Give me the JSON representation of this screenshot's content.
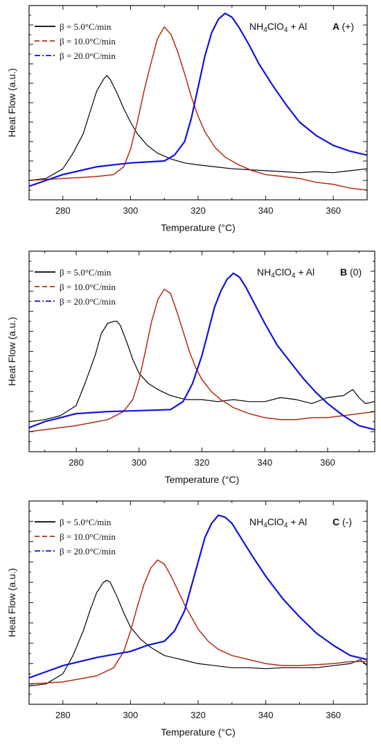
{
  "chart_data": [
    {
      "type": "line",
      "panel_label": "A",
      "panel_sign": "(+)",
      "title": "NH4ClO4 + Al",
      "xlabel": "Temperature (°C)",
      "ylabel": "Heat Flow (a.u.)",
      "xlim": [
        270,
        370
      ],
      "ylim": [
        0,
        10
      ],
      "xticks": [
        280,
        300,
        320,
        340,
        360
      ],
      "legend_position": "top-left",
      "series": [
        {
          "name": "β = 5.0°C/min",
          "color": "#000000",
          "dash": "solid",
          "x": [
            270,
            275,
            280,
            283,
            286,
            288,
            290,
            292,
            293,
            294,
            296,
            298,
            300,
            302,
            305,
            308,
            312,
            316,
            320,
            325,
            330,
            335,
            340,
            345,
            350,
            355,
            360,
            365,
            370
          ],
          "y": [
            1.0,
            1.1,
            1.6,
            2.4,
            3.4,
            4.5,
            5.6,
            6.2,
            6.4,
            6.2,
            5.5,
            4.7,
            4.0,
            3.4,
            2.8,
            2.4,
            2.1,
            1.9,
            1.8,
            1.7,
            1.6,
            1.55,
            1.5,
            1.45,
            1.4,
            1.45,
            1.4,
            1.5,
            1.6
          ]
        },
        {
          "name": "β = 10.0°C/min",
          "color": "#b22a10",
          "dash": "dashed",
          "x": [
            270,
            280,
            290,
            295,
            298,
            300,
            302,
            304,
            306,
            308,
            310,
            312,
            314,
            316,
            318,
            320,
            322,
            325,
            328,
            332,
            336,
            340,
            345,
            350,
            355,
            360,
            365,
            370
          ],
          "y": [
            1.0,
            1.1,
            1.2,
            1.3,
            1.7,
            2.6,
            4.0,
            5.6,
            7.0,
            8.3,
            8.9,
            8.5,
            7.6,
            6.5,
            5.3,
            4.3,
            3.5,
            2.7,
            2.2,
            1.8,
            1.5,
            1.3,
            1.2,
            1.1,
            0.9,
            0.8,
            0.6,
            0.5
          ]
        },
        {
          "name": "β = 20.0°C/min",
          "color": "#1010e0",
          "dash": "dashdot",
          "x": [
            270,
            275,
            280,
            290,
            300,
            305,
            310,
            313,
            316,
            318,
            320,
            322,
            324,
            326,
            328,
            330,
            332,
            335,
            338,
            342,
            346,
            350,
            355,
            360,
            365,
            370
          ],
          "y": [
            0.7,
            1.0,
            1.3,
            1.7,
            1.9,
            1.95,
            2.0,
            2.3,
            3.0,
            4.2,
            5.8,
            7.4,
            8.6,
            9.3,
            9.6,
            9.4,
            8.9,
            8.0,
            7.0,
            5.9,
            4.9,
            4.0,
            3.3,
            2.8,
            2.5,
            2.3
          ]
        }
      ]
    },
    {
      "type": "line",
      "panel_label": "B",
      "panel_sign": "(0)",
      "title": "NH4ClO4 + Al",
      "xlabel": "Temperature (°C)",
      "ylabel": "Heat Flow (a.u.)",
      "xlim": [
        265,
        375
      ],
      "ylim": [
        0,
        10
      ],
      "xticks": [
        280,
        300,
        320,
        340,
        360
      ],
      "legend_position": "top-left",
      "series": [
        {
          "name": "β = 5.0°C/min",
          "color": "#000000",
          "dash": "solid",
          "x": [
            265,
            270,
            275,
            280,
            283,
            286,
            288,
            290,
            292,
            293,
            294,
            296,
            298,
            300,
            303,
            306,
            310,
            315,
            320,
            325,
            330,
            335,
            340,
            345,
            350,
            355,
            360,
            365,
            368,
            370,
            372,
            375
          ],
          "y": [
            1.5,
            1.6,
            1.8,
            2.3,
            3.5,
            4.8,
            5.9,
            6.4,
            6.5,
            6.5,
            6.3,
            5.5,
            4.6,
            3.9,
            3.4,
            3.1,
            2.8,
            2.6,
            2.6,
            2.5,
            2.6,
            2.5,
            2.5,
            2.7,
            2.6,
            2.4,
            2.7,
            2.8,
            3.1,
            2.7,
            2.4,
            2.5
          ]
        },
        {
          "name": "β = 10.0°C/min",
          "color": "#b22a10",
          "dash": "dashed",
          "x": [
            265,
            270,
            280,
            290,
            295,
            298,
            300,
            302,
            304,
            306,
            308,
            310,
            312,
            314,
            316,
            318,
            320,
            323,
            326,
            330,
            335,
            340,
            345,
            350,
            355,
            360,
            365,
            370,
            375
          ],
          "y": [
            1.0,
            1.1,
            1.3,
            1.6,
            2.0,
            2.6,
            3.6,
            5.0,
            6.5,
            7.6,
            8.1,
            7.9,
            7.0,
            6.0,
            5.0,
            4.2,
            3.6,
            3.0,
            2.6,
            2.2,
            1.9,
            1.7,
            1.6,
            1.6,
            1.7,
            1.7,
            1.8,
            1.9,
            2.0
          ]
        },
        {
          "name": "β = 20.0°C/min",
          "color": "#1010e0",
          "dash": "dashdot",
          "x": [
            265,
            270,
            275,
            280,
            290,
            300,
            310,
            314,
            317,
            320,
            322,
            324,
            326,
            328,
            330,
            332,
            334,
            337,
            340,
            344,
            348,
            352,
            356,
            360,
            365,
            370,
            375
          ],
          "y": [
            1.2,
            1.5,
            1.7,
            1.9,
            2.0,
            2.05,
            2.1,
            2.5,
            3.4,
            4.8,
            6.0,
            7.2,
            8.0,
            8.6,
            8.9,
            8.7,
            8.2,
            7.3,
            6.4,
            5.3,
            4.5,
            3.7,
            3.0,
            2.4,
            1.8,
            1.3,
            1.1
          ]
        }
      ]
    },
    {
      "type": "line",
      "panel_label": "C",
      "panel_sign": "(-)",
      "title": "NH4ClO4 + Al",
      "xlabel": "Temperature (°C)",
      "ylabel": "Heat Flow (a.u.)",
      "xlim": [
        270,
        370
      ],
      "ylim": [
        0,
        10
      ],
      "xticks": [
        280,
        300,
        320,
        340,
        360
      ],
      "legend_position": "top-left",
      "series": [
        {
          "name": "β = 5.0°C/min",
          "color": "#000000",
          "dash": "solid",
          "x": [
            270,
            275,
            280,
            283,
            286,
            288,
            290,
            292,
            293,
            294,
            296,
            298,
            300,
            303,
            306,
            310,
            315,
            320,
            325,
            330,
            335,
            340,
            345,
            350,
            355,
            360,
            365,
            368,
            370
          ],
          "y": [
            0.9,
            1.0,
            1.5,
            2.4,
            3.6,
            4.6,
            5.5,
            6.0,
            6.1,
            6.0,
            5.3,
            4.5,
            3.8,
            3.2,
            2.8,
            2.4,
            2.2,
            2.0,
            1.9,
            1.8,
            1.8,
            1.75,
            1.8,
            1.8,
            1.8,
            1.9,
            2.0,
            2.2,
            1.9
          ]
        },
        {
          "name": "β = 10.0°C/min",
          "color": "#b22a10",
          "dash": "dashed",
          "x": [
            270,
            280,
            290,
            295,
            298,
            300,
            302,
            304,
            306,
            308,
            310,
            312,
            314,
            316,
            318,
            320,
            323,
            326,
            330,
            335,
            340,
            345,
            350,
            355,
            360,
            365,
            370
          ],
          "y": [
            1.0,
            1.1,
            1.4,
            1.8,
            2.6,
            3.6,
            4.8,
            5.9,
            6.7,
            7.1,
            6.9,
            6.3,
            5.6,
            4.9,
            4.3,
            3.7,
            3.1,
            2.7,
            2.4,
            2.2,
            2.0,
            1.9,
            1.9,
            1.95,
            2.0,
            2.1,
            2.1
          ]
        },
        {
          "name": "β = 20.0°C/min",
          "color": "#1010e0",
          "dash": "dashdot",
          "x": [
            270,
            275,
            280,
            290,
            300,
            305,
            310,
            313,
            316,
            318,
            320,
            322,
            324,
            326,
            328,
            330,
            333,
            336,
            340,
            345,
            350,
            355,
            360,
            365,
            370
          ],
          "y": [
            1.3,
            1.6,
            1.9,
            2.3,
            2.6,
            2.9,
            3.1,
            3.6,
            4.6,
            5.8,
            7.0,
            8.2,
            8.9,
            9.3,
            9.2,
            8.9,
            8.1,
            7.3,
            6.3,
            5.2,
            4.3,
            3.5,
            2.9,
            2.4,
            2.2
          ]
        }
      ]
    }
  ]
}
